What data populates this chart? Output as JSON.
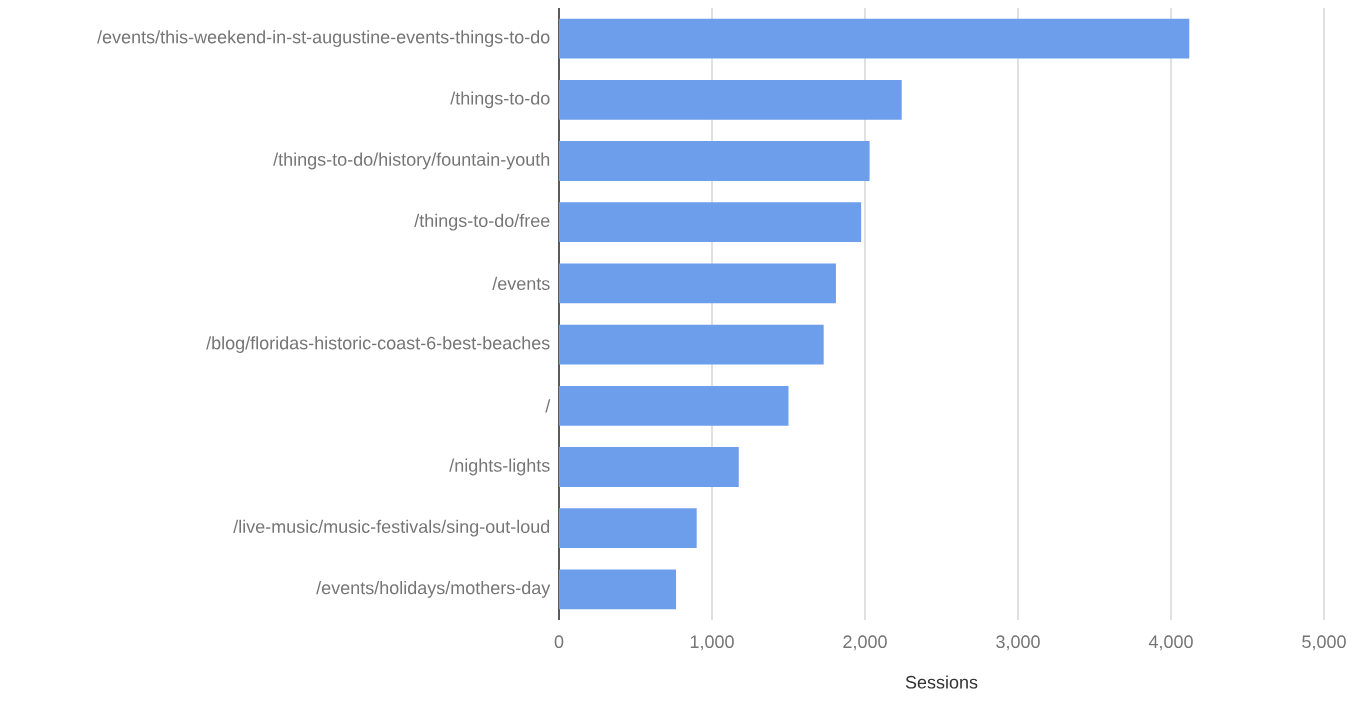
{
  "chart_data": {
    "type": "bar",
    "orientation": "horizontal",
    "xlabel": "Sessions",
    "categories": [
      "/events/this-weekend-in-st-augustine-events-things-to-do",
      "/things-to-do",
      "/things-to-do/history/fountain-youth",
      "/things-to-do/free",
      "/events",
      "/blog/floridas-historic-coast-6-best-beaches",
      "/",
      "/nights-lights",
      "/live-music/music-festivals/sing-out-loud",
      "/events/holidays/mothers-day"
    ],
    "values": [
      4120,
      2240,
      2030,
      1975,
      1810,
      1730,
      1500,
      1175,
      900,
      765
    ],
    "color": "#6d9eeb",
    "xlim": [
      0,
      5000
    ],
    "xticks": [
      0,
      {
        "value": 1000,
        "label": "1,000"
      },
      {
        "value": 2000,
        "label": "2,000"
      },
      {
        "value": 3000,
        "label": "3,000"
      },
      {
        "value": 4000,
        "label": "4,000"
      },
      {
        "value": 5000,
        "label": "5,000"
      }
    ],
    "grid": "x"
  }
}
